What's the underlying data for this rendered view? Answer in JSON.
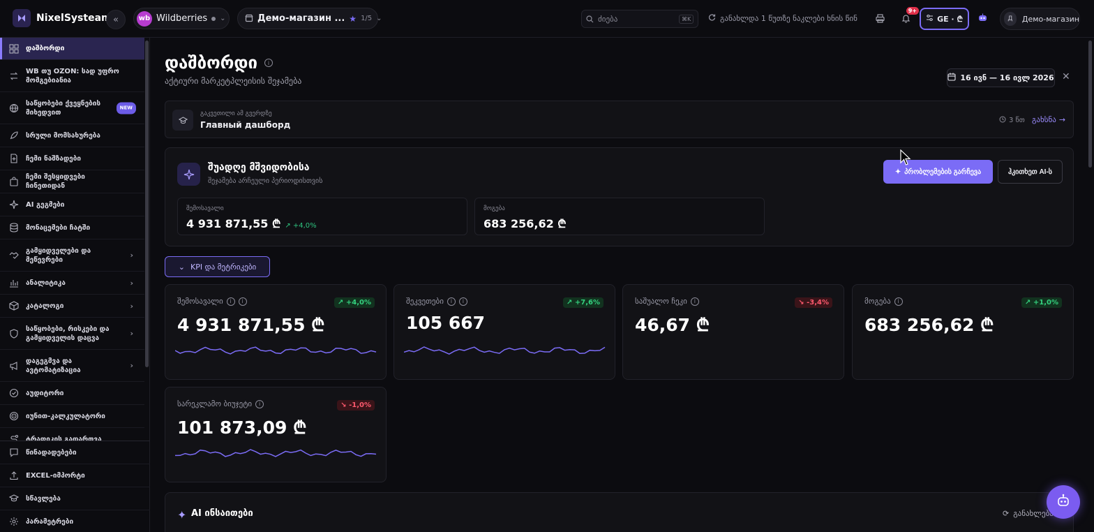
{
  "topbar": {
    "brand": "NixelSysteam",
    "marketplace": {
      "badge": "wb",
      "name": "Wildberries"
    },
    "shop": {
      "name": "Демо-магазин ...",
      "count": "1/5"
    },
    "search": {
      "placeholder": "ძიება",
      "shortcut": "⌘K"
    },
    "sync_status": "განახლდა 1 წუთზე ნაკლები ხნის წინ",
    "notifications_badge": "9+",
    "lang": "GE · ₾",
    "user": {
      "initial": "Д",
      "name": "Демо-магазин"
    }
  },
  "sidebar": {
    "items": [
      {
        "label": "დაშბორდი",
        "icon": "dashboard-icon",
        "active": true,
        "arrow": false
      },
      {
        "label": "WB თუ OZON: სად უფრო მომგებიანია",
        "icon": "compare-icon",
        "arrow": false
      },
      {
        "label": "საწყობები ქვეყნების მიხედვით",
        "icon": "globe-icon",
        "badge": "NEW",
        "arrow": false
      },
      {
        "label": "სრული მომსახურება",
        "icon": "rocket-icon",
        "arrow": false
      },
      {
        "label": "ჩემი ნაშზადები",
        "icon": "file-plus-icon",
        "arrow": false
      },
      {
        "label": "ჩემი შესყიდვები ჩინეთიდან",
        "icon": "bag-icon",
        "arrow": false
      },
      {
        "label": "AI გეგმები",
        "icon": "sparkles-icon",
        "arrow": false
      },
      {
        "label": "მონაცემები ჩატში",
        "icon": "database-icon",
        "arrow": false
      },
      {
        "label": "გამყიდველები და მეწევრები",
        "icon": "handshake-icon",
        "arrow": true
      },
      {
        "label": "ანალიტიკა",
        "icon": "bar-chart-icon",
        "arrow": true
      },
      {
        "label": "კატალოგი",
        "icon": "box-icon",
        "arrow": true
      },
      {
        "label": "საწყობები, რისკები და გამყიდველის დაცვა",
        "icon": "shield-icon",
        "arrow": true
      },
      {
        "label": "დაგეგმვა და ავტომატიზაცია",
        "icon": "megaphone-icon",
        "arrow": true
      },
      {
        "label": "აუდიტორი",
        "icon": "check-circle-icon",
        "arrow": false
      },
      {
        "label": "იუნით-კალკულატორი",
        "icon": "target-icon",
        "arrow": false
      },
      {
        "label": "ტრაფიკის გადართვა",
        "icon": "route-icon",
        "arrow": false
      }
    ],
    "bottom": [
      {
        "label": "წინადადებები",
        "icon": "message-icon"
      },
      {
        "label": "EXCEL-იმპორტი",
        "icon": "upload-icon"
      },
      {
        "label": "სწავლება",
        "icon": "graduation-icon"
      },
      {
        "label": "პარამეტრები",
        "icon": "settings-icon"
      }
    ]
  },
  "main": {
    "title": "დაშბორდი",
    "subtitle": "აქტიური მარკეტპლეისის შეჯამება",
    "date_range": "16 ივნ — 16 ივლ 2026",
    "lesson": {
      "caption": "გაკვეთილი ამ გვერდზე",
      "title": "Главный дашборд",
      "duration": "3 წთ",
      "open": "გახსნა"
    },
    "health": {
      "title": "შუადღე მშვიდობისა",
      "subtitle": "შეჯამება არჩეული პერიოდისთვის",
      "primary_button": "პრობლემების გარჩევა",
      "secondary_button": "ჰკითხეთ AI-ს",
      "stats": [
        {
          "label": "შემოსავალი",
          "value": "4 931 871,55 ₾",
          "delta": "↗ +4,0%"
        },
        {
          "label": "მოგება",
          "value": "683 256,62 ₾",
          "delta": ""
        }
      ]
    },
    "kpi_toggle": "KPI და მეტრიკები",
    "kpis": [
      {
        "label": "შემოსავალი",
        "value": "4 931 871,55 ₾",
        "delta": "↗ +4,0%",
        "trend": "up",
        "info_count": 2,
        "spark": true
      },
      {
        "label": "შეკვეთები",
        "value": "105 667",
        "delta": "↗ +7,6%",
        "trend": "up",
        "info_count": 2,
        "spark": true
      },
      {
        "label": "საშუალო ჩეკი",
        "value": "46,67 ₾",
        "delta": "↘ -3,4%",
        "trend": "down",
        "info_count": 1,
        "spark": false
      },
      {
        "label": "მოგება",
        "value": "683 256,62 ₾",
        "delta": "↗ +1,0%",
        "trend": "up",
        "info_count": 1,
        "spark": false
      },
      {
        "label": "სარეკლამო ბიუჯეტი",
        "value": "101 873,09 ₾",
        "delta": "↘ -1,0%",
        "trend": "down",
        "info_count": 1,
        "spark": true
      }
    ],
    "ai_insights": {
      "title": "AI ინსაითები",
      "refresh": "განახლება"
    }
  },
  "colors": {
    "accent": "#7b6cf6",
    "positive": "#34d17f",
    "negative": "#ff5a6e",
    "background": "#0c0c10"
  }
}
